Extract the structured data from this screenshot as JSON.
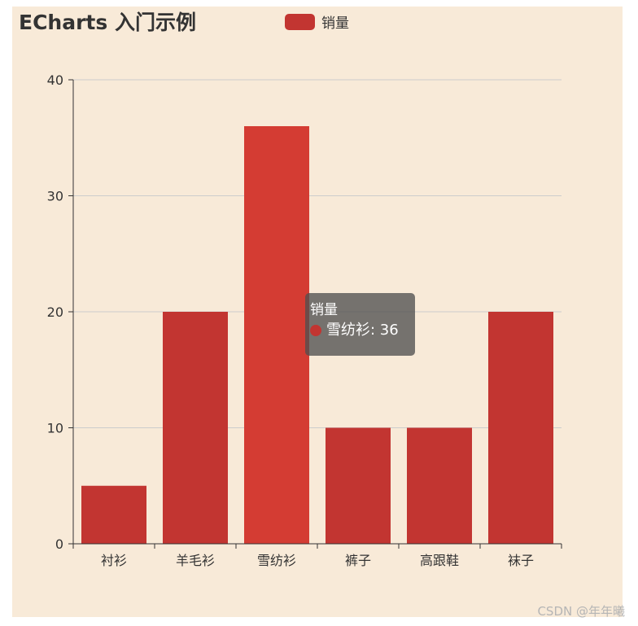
{
  "title": "ECharts 入门示例",
  "legend": {
    "label": "销量",
    "color": "#c23531"
  },
  "tooltip": {
    "title": "销量",
    "category": "雪纺衫",
    "value": 36,
    "text": "雪纺衫: 36"
  },
  "watermark": "CSDN @年年曦",
  "colors": {
    "background": "#f8ead8",
    "bar": "#c23531",
    "bar_highlight": "#d43c33",
    "grid": "#cccccc",
    "axis": "#333333"
  },
  "chart_data": {
    "type": "bar",
    "title": "ECharts 入门示例",
    "categories": [
      "衬衫",
      "羊毛衫",
      "雪纺衫",
      "裤子",
      "高跟鞋",
      "袜子"
    ],
    "series": [
      {
        "name": "销量",
        "values": [
          5,
          20,
          36,
          10,
          10,
          20
        ]
      }
    ],
    "ylim": [
      0,
      40
    ],
    "yticks": [
      0,
      10,
      20,
      30,
      40
    ],
    "grid": true,
    "legend_position": "top-center",
    "highlighted_category": "雪纺衫"
  }
}
